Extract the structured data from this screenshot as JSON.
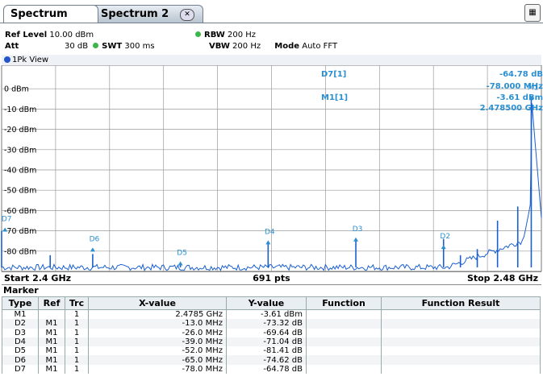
{
  "tabs": [
    {
      "label": "Spectrum",
      "active": true
    },
    {
      "label": "Spectrum 2",
      "active": false,
      "close_icon": "close-x-icon"
    }
  ],
  "corner_icon": "display-config-icon",
  "settings": {
    "ref_level_label": "Ref Level",
    "ref_level_value": "10.00 dBm",
    "att_label": "Att",
    "att_value": "30 dB",
    "swt_label": "SWT",
    "swt_value": "300 ms",
    "rbw_label": "RBW",
    "rbw_value": "200 Hz",
    "vbw_label": "VBW",
    "vbw_value": "200 Hz",
    "mode_label": "Mode",
    "mode_value": "Auto FFT",
    "indicator_color": "#3cb54a"
  },
  "view_label": "1Pk View",
  "readout": {
    "d7_label": "D7[1]",
    "d7_level": "-64.78 dB",
    "d7_freq": "-78.000 MHz",
    "m1_label": "M1[1]",
    "m1_level": "-3.61 dBm",
    "m1_freq": "2.478500 GHz",
    "color": "#2a8fd0"
  },
  "start_freq": "Start 2.4 GHz",
  "points": "691 pts",
  "stop_freq": "Stop 2.48 GHz",
  "chart_data": {
    "type": "line",
    "x_unit": "GHz",
    "y_unit": "dBm",
    "xlim": [
      2.4,
      2.48
    ],
    "ylim": [
      -90,
      10
    ],
    "ytick_labels": [
      "0 dBm",
      "-10 dBm",
      "-20 dBm",
      "-30 dBm",
      "-40 dBm",
      "-50 dBm",
      "-60 dBm",
      "-70 dBm",
      "-80 dBm"
    ],
    "ytick_values": [
      0,
      -10,
      -20,
      -30,
      -40,
      -50,
      -60,
      -70,
      -80
    ],
    "grid": true,
    "trace_color": "#1a5fd0",
    "noise_floor": -88,
    "spikes": [
      {
        "x": 2.4,
        "y": -70
      },
      {
        "x": 2.4072,
        "y": -82
      },
      {
        "x": 2.4135,
        "y": -81.41
      },
      {
        "x": 2.4265,
        "y": -86
      },
      {
        "x": 2.4395,
        "y": -76
      },
      {
        "x": 2.4525,
        "y": -75
      },
      {
        "x": 2.4655,
        "y": -74
      },
      {
        "x": 2.468,
        "y": -82
      },
      {
        "x": 2.4705,
        "y": -79
      },
      {
        "x": 2.4735,
        "y": -65
      },
      {
        "x": 2.4765,
        "y": -58
      },
      {
        "x": 2.4785,
        "y": -3.61
      }
    ],
    "markers": [
      {
        "label": "M1",
        "x": 2.4785,
        "y": -3.61
      },
      {
        "label": "D2",
        "x": 2.4655,
        "y": -76.93
      },
      {
        "label": "D3",
        "x": 2.4525,
        "y": -73.25
      },
      {
        "label": "D4",
        "x": 2.4395,
        "y": -74.65
      },
      {
        "label": "D5",
        "x": 2.4265,
        "y": -85.02
      },
      {
        "label": "D6",
        "x": 2.4135,
        "y": -78.23
      },
      {
        "label": "D7",
        "x": 2.4005,
        "y": -68.39
      }
    ]
  },
  "marker_section_title": "Marker",
  "marker_table": {
    "headers": [
      "Type",
      "Ref",
      "Trc",
      "X-value",
      "Y-value",
      "Function",
      "Function Result"
    ],
    "rows": [
      [
        "M1",
        "",
        "1",
        "2.4785 GHz",
        "-3.61 dBm",
        "",
        ""
      ],
      [
        "D2",
        "M1",
        "1",
        "-13.0 MHz",
        "-73.32 dB",
        "",
        ""
      ],
      [
        "D3",
        "M1",
        "1",
        "-26.0 MHz",
        "-69.64 dB",
        "",
        ""
      ],
      [
        "D4",
        "M1",
        "1",
        "-39.0 MHz",
        "-71.04 dB",
        "",
        ""
      ],
      [
        "D5",
        "M1",
        "1",
        "-52.0 MHz",
        "-81.41 dB",
        "",
        ""
      ],
      [
        "D6",
        "M1",
        "1",
        "-65.0 MHz",
        "-74.62 dB",
        "",
        ""
      ],
      [
        "D7",
        "M1",
        "1",
        "-78.0 MHz",
        "-64.78 dB",
        "",
        ""
      ]
    ]
  }
}
